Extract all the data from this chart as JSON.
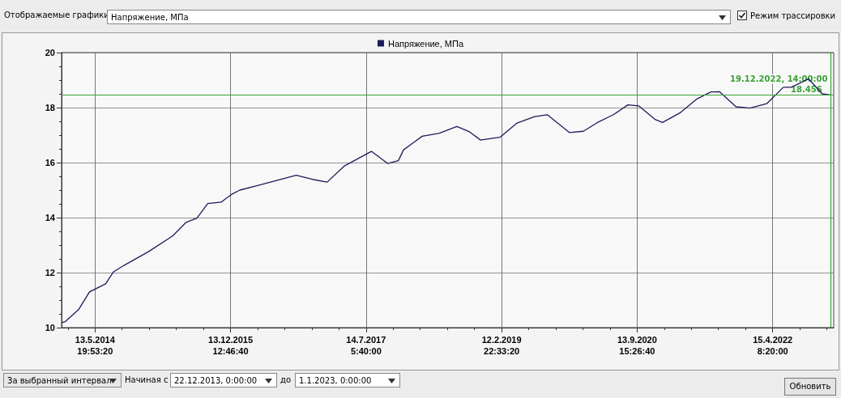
{
  "chart_data": {
    "type": "line",
    "legend": "top",
    "grid": true,
    "marker": "none",
    "annotations": [
      "Отображаемые графики",
      "Напряжение, МПа",
      "Режим трассировки",
      "За выбранный интервал",
      "Начиная с",
      "22.12.2013, 0:00:00",
      "до",
      "1.1.2023, 0:00:00",
      "Обновить"
    ],
    "xlim": [
      "2013-12-22T00:00",
      "2023-01-01T00:00"
    ],
    "xticks": [
      {
        "value": "2014-05-13T19:53:20",
        "label": "13.5.2014\n19:53:20"
      },
      {
        "value": "2015-12-13T12:46:40",
        "label": "13.12.2015\n12:46:40"
      },
      {
        "value": "2017-07-14T05:40:00",
        "label": "14.7.2017\n5:40:00"
      },
      {
        "value": "2019-02-12T22:33:20",
        "label": "12.2.2019\n22:33:20"
      },
      {
        "value": "2020-09-13T15:26:40",
        "label": "13.9.2020\n15:26:40"
      },
      {
        "value": "2022-04-15T08:20:00",
        "label": "15.4.2022\n8:20:00"
      }
    ],
    "ylim": [
      10,
      20
    ],
    "yticks": [
      10,
      12,
      14,
      16,
      18,
      20
    ],
    "ref_lines": [
      {
        "axis": "y",
        "value": 18.456,
        "label": "18.456",
        "color": "#3aa335"
      },
      {
        "axis": "x",
        "value": "2022-12-19T14:00",
        "label": "19.12.2022, 14:00:00",
        "color": "#3aa335"
      }
    ],
    "series": [
      {
        "name": "Напряжение, МПа",
        "color": "#1c1c5c",
        "x": [
          "2013-12-23",
          "2014-01-07",
          "2014-03-05",
          "2014-04-20",
          "2014-06-28",
          "2014-08-01",
          "2014-09-16",
          "2014-12-28",
          "2015-04-11",
          "2015-06-07",
          "2015-07-23",
          "2015-09-07",
          "2015-11-03",
          "2015-12-19",
          "2016-01-22",
          "2016-03-31",
          "2016-09-19",
          "2016-11-27",
          "2017-01-29",
          "2017-04-13",
          "2017-08-06",
          "2017-10-14",
          "2017-11-29",
          "2017-12-21",
          "2018-03-11",
          "2018-05-21",
          "2018-08-06",
          "2018-09-29",
          "2018-11-15",
          "2019-02-06",
          "2019-04-18",
          "2019-07-04",
          "2019-08-27",
          "2019-11-30",
          "2020-01-28",
          "2020-03-27",
          "2020-06-06",
          "2020-08-05",
          "2020-09-21",
          "2020-12-01",
          "2020-12-31",
          "2021-03-18",
          "2021-05-28",
          "2021-07-26",
          "2021-08-31",
          "2021-11-10",
          "2022-01-08",
          "2022-03-21",
          "2022-05-31",
          "2022-07-05",
          "2022-09-15",
          "2022-11-13",
          "2022-12-19T14:00"
        ],
        "values": [
          10.18,
          10.22,
          10.66,
          11.3,
          11.59,
          12.03,
          12.27,
          12.76,
          13.34,
          13.83,
          13.98,
          14.51,
          14.56,
          14.85,
          15.0,
          15.15,
          15.54,
          15.39,
          15.29,
          15.88,
          16.41,
          15.97,
          16.07,
          16.46,
          16.96,
          17.06,
          17.31,
          17.12,
          16.82,
          16.92,
          17.43,
          17.67,
          17.74,
          17.09,
          17.14,
          17.45,
          17.75,
          18.1,
          18.06,
          17.56,
          17.46,
          17.82,
          18.32,
          18.57,
          18.58,
          18.03,
          17.98,
          18.14,
          18.74,
          18.74,
          19.05,
          18.5,
          18.46
        ]
      }
    ]
  }
}
